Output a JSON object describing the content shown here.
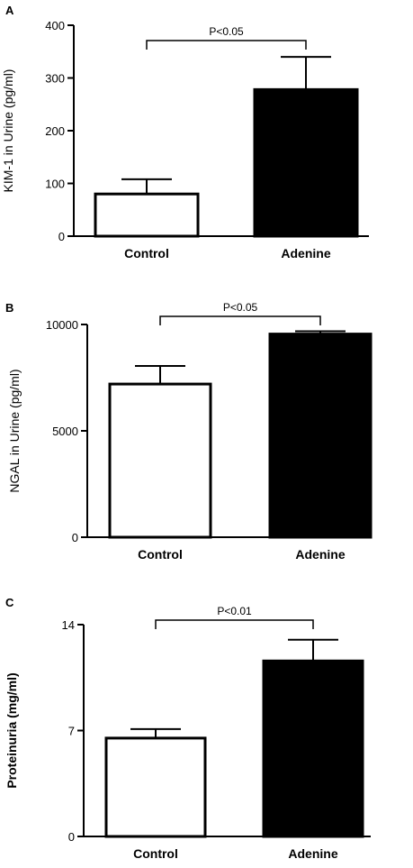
{
  "chart_data": [
    {
      "type": "bar",
      "panel": "A",
      "ylabel": "KIM-1 in Urine (pg/ml)",
      "ylim": [
        0,
        400
      ],
      "yticks": [
        0,
        100,
        200,
        300,
        400
      ],
      "categories": [
        "Control",
        "Adenine"
      ],
      "values": [
        80,
        278
      ],
      "errors": [
        28,
        62
      ],
      "bar_colors": [
        "#ffffff",
        "#000000"
      ],
      "significance": "P<0.05"
    },
    {
      "type": "bar",
      "panel": "B",
      "ylabel": "NGAL in Urine (pg/ml)",
      "ylim": [
        0,
        10000
      ],
      "yticks": [
        0,
        5000,
        10000
      ],
      "categories": [
        "Control",
        "Adenine"
      ],
      "values": [
        7200,
        9550
      ],
      "errors": [
        850,
        130
      ],
      "bar_colors": [
        "#ffffff",
        "#000000"
      ],
      "significance": "P<0.05"
    },
    {
      "type": "bar",
      "panel": "C",
      "ylabel": "Proteinuria (mg/ml)",
      "ylim": [
        0,
        14
      ],
      "yticks": [
        0,
        7,
        14
      ],
      "categories": [
        "Control",
        "Adenine"
      ],
      "values": [
        6.5,
        11.6
      ],
      "errors": [
        0.6,
        1.4
      ],
      "bar_colors": [
        "#ffffff",
        "#000000"
      ],
      "significance": "P<0.01"
    }
  ]
}
